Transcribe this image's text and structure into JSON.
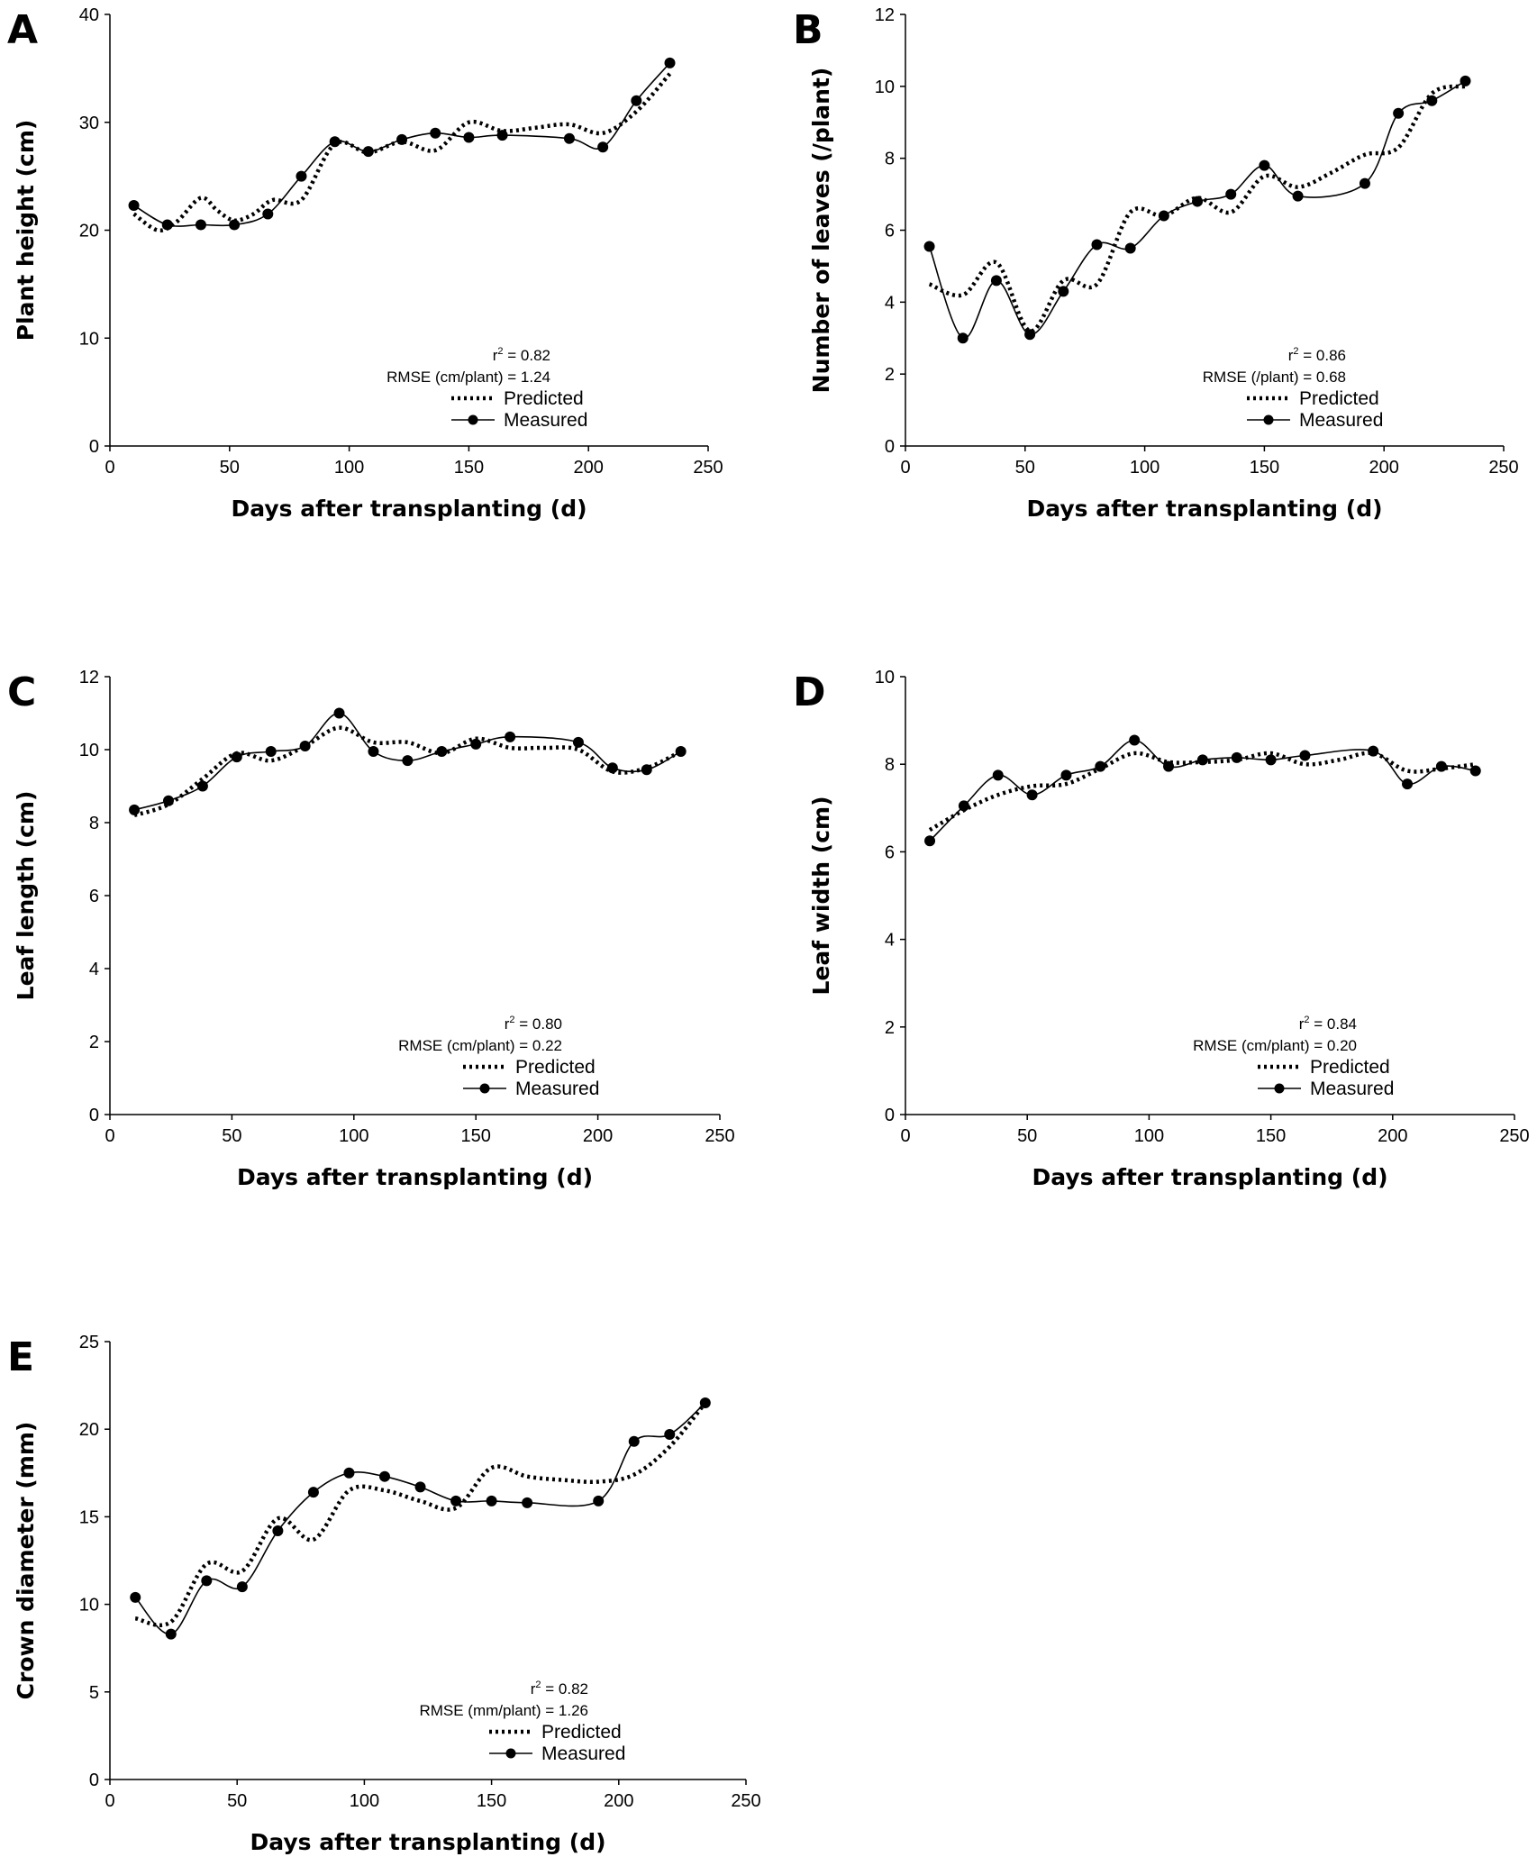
{
  "figure_title": "",
  "chart_data": [
    {
      "type": "line",
      "panel": "A",
      "xlabel": "Days after transplanting (d)",
      "ylabel": "Plant height (cm)",
      "xlim": [
        0,
        250
      ],
      "ylim": [
        0,
        40
      ],
      "xticks": [
        0,
        50,
        100,
        150,
        200,
        250
      ],
      "yticks": [
        0,
        10,
        20,
        30,
        40
      ],
      "stats": {
        "r2_prefix": "r",
        "r2_sup": "2",
        "r2_value": " = 0.82",
        "rmse": "RMSE (cm/plant) = 1.24"
      },
      "legend": [
        "Predicted",
        "Measured"
      ],
      "series": [
        {
          "name": "Measured",
          "style": "solid-marker",
          "x": [
            10,
            24,
            38,
            52,
            66,
            80,
            94,
            108,
            122,
            136,
            150,
            164,
            192,
            206,
            220,
            234
          ],
          "y": [
            22.3,
            20.5,
            20.5,
            20.5,
            21.5,
            25.0,
            28.2,
            27.3,
            28.4,
            29.0,
            28.6,
            28.8,
            28.5,
            27.7,
            32.0,
            35.5
          ]
        },
        {
          "name": "Predicted",
          "style": "dotted",
          "x": [
            10,
            20,
            28,
            38,
            45,
            52,
            60,
            68,
            80,
            94,
            108,
            122,
            136,
            150,
            164,
            178,
            192,
            206,
            220,
            234
          ],
          "y": [
            21.5,
            20.0,
            20.8,
            23.0,
            21.8,
            20.9,
            21.5,
            22.8,
            22.8,
            28.0,
            27.2,
            28.2,
            27.4,
            30.0,
            29.2,
            29.5,
            29.8,
            29.0,
            31.0,
            34.5
          ]
        }
      ]
    },
    {
      "type": "line",
      "panel": "B",
      "xlabel": "Days after transplanting (d)",
      "ylabel": "Number of leaves (/plant)",
      "xlim": [
        0,
        250
      ],
      "ylim": [
        0,
        12
      ],
      "xticks": [
        0,
        50,
        100,
        150,
        200,
        250
      ],
      "yticks": [
        0,
        2,
        4,
        6,
        8,
        10,
        12
      ],
      "stats": {
        "r2_prefix": "r",
        "r2_sup": "2",
        "r2_value": " = 0.86",
        "rmse": "RMSE (/plant) = 0.68"
      },
      "legend": [
        "Predicted",
        "Measured"
      ],
      "series": [
        {
          "name": "Measured",
          "style": "solid-marker",
          "x": [
            10,
            24,
            38,
            52,
            66,
            80,
            94,
            108,
            122,
            136,
            150,
            164,
            192,
            206,
            220,
            234
          ],
          "y": [
            5.55,
            3.0,
            4.6,
            3.1,
            4.3,
            5.6,
            5.5,
            6.4,
            6.8,
            7.0,
            7.8,
            6.95,
            7.3,
            9.25,
            9.6,
            10.15
          ]
        },
        {
          "name": "Predicted",
          "style": "dotted",
          "x": [
            10,
            24,
            38,
            52,
            66,
            80,
            94,
            108,
            122,
            136,
            150,
            164,
            178,
            192,
            206,
            220,
            234
          ],
          "y": [
            4.5,
            4.2,
            5.1,
            3.2,
            4.6,
            4.5,
            6.5,
            6.4,
            6.9,
            6.5,
            7.5,
            7.2,
            7.6,
            8.1,
            8.3,
            9.8,
            10.0
          ]
        }
      ]
    },
    {
      "type": "line",
      "panel": "C",
      "xlabel": "Days after transplanting (d)",
      "ylabel": "Leaf length (cm)",
      "xlim": [
        0,
        250
      ],
      "ylim": [
        0,
        12
      ],
      "xticks": [
        0,
        50,
        100,
        150,
        200,
        250
      ],
      "yticks": [
        0,
        2,
        4,
        6,
        8,
        10,
        12
      ],
      "stats": {
        "r2_prefix": "r",
        "r2_sup": "2",
        "r2_value": " = 0.80",
        "rmse": "RMSE (cm/plant) = 0.22"
      },
      "legend": [
        "Predicted",
        "Measured"
      ],
      "series": [
        {
          "name": "Measured",
          "style": "solid-marker",
          "x": [
            10,
            24,
            38,
            52,
            66,
            80,
            94,
            108,
            122,
            136,
            150,
            164,
            192,
            206,
            220,
            234
          ],
          "y": [
            8.35,
            8.6,
            9.0,
            9.8,
            9.95,
            10.1,
            11.0,
            9.95,
            9.7,
            9.95,
            10.15,
            10.35,
            10.2,
            9.5,
            9.45,
            9.95
          ]
        },
        {
          "name": "Predicted",
          "style": "dotted",
          "x": [
            10,
            24,
            38,
            52,
            66,
            80,
            94,
            108,
            122,
            136,
            150,
            164,
            178,
            192,
            206,
            220,
            234
          ],
          "y": [
            8.2,
            8.5,
            9.2,
            9.9,
            9.7,
            10.1,
            10.6,
            10.2,
            10.2,
            9.9,
            10.3,
            10.05,
            10.05,
            10.0,
            9.4,
            9.5,
            9.95
          ]
        }
      ]
    },
    {
      "type": "line",
      "panel": "D",
      "xlabel": "Days after transplanting (d)",
      "ylabel": "Leaf width (cm)",
      "xlim": [
        0,
        250
      ],
      "ylim": [
        0,
        10
      ],
      "xticks": [
        0,
        50,
        100,
        150,
        200,
        250
      ],
      "yticks": [
        0,
        2,
        4,
        6,
        8,
        10
      ],
      "stats": {
        "r2_prefix": "r",
        "r2_sup": "2",
        "r2_value": " = 0.84",
        "rmse": "RMSE (cm/plant) = 0.20"
      },
      "legend": [
        "Predicted",
        "Measured"
      ],
      "series": [
        {
          "name": "Measured",
          "style": "solid-marker",
          "x": [
            10,
            24,
            38,
            52,
            66,
            80,
            94,
            108,
            122,
            136,
            150,
            164,
            192,
            206,
            220,
            234
          ],
          "y": [
            6.25,
            7.05,
            7.75,
            7.3,
            7.75,
            7.95,
            8.55,
            7.95,
            8.1,
            8.15,
            8.1,
            8.2,
            8.3,
            7.55,
            7.95,
            7.85
          ]
        },
        {
          "name": "Predicted",
          "style": "dotted",
          "x": [
            10,
            24,
            38,
            52,
            66,
            80,
            94,
            108,
            122,
            136,
            150,
            164,
            178,
            192,
            206,
            220,
            234
          ],
          "y": [
            6.5,
            6.95,
            7.3,
            7.5,
            7.55,
            7.9,
            8.25,
            8.05,
            8.05,
            8.1,
            8.25,
            8.0,
            8.1,
            8.25,
            7.85,
            7.9,
            8.0
          ]
        }
      ]
    },
    {
      "type": "line",
      "panel": "E",
      "xlabel": "Days after transplanting (d)",
      "ylabel": "Crown diameter (mm)",
      "xlim": [
        0,
        250
      ],
      "ylim": [
        0,
        25
      ],
      "xticks": [
        0,
        50,
        100,
        150,
        200,
        250
      ],
      "yticks": [
        0,
        5,
        10,
        15,
        20,
        25
      ],
      "stats": {
        "r2_prefix": "r",
        "r2_sup": "2",
        "r2_value": " = 0.82",
        "rmse": "RMSE (mm/plant) = 1.26"
      },
      "legend": [
        "Predicted",
        "Measured"
      ],
      "series": [
        {
          "name": "Measured",
          "style": "solid-marker",
          "x": [
            10,
            24,
            38,
            52,
            66,
            80,
            94,
            108,
            122,
            136,
            150,
            164,
            192,
            206,
            220,
            234
          ],
          "y": [
            10.4,
            8.3,
            11.35,
            11.0,
            14.2,
            16.4,
            17.5,
            17.3,
            16.7,
            15.9,
            15.9,
            15.8,
            15.9,
            19.3,
            19.7,
            21.5
          ]
        },
        {
          "name": "Predicted",
          "style": "dotted",
          "x": [
            10,
            24,
            38,
            52,
            66,
            80,
            94,
            108,
            122,
            136,
            150,
            164,
            178,
            192,
            206,
            220,
            234
          ],
          "y": [
            9.2,
            9.0,
            12.3,
            11.9,
            14.9,
            13.7,
            16.5,
            16.5,
            15.9,
            15.5,
            17.8,
            17.3,
            17.1,
            17.0,
            17.4,
            19.0,
            21.5
          ]
        }
      ]
    }
  ]
}
